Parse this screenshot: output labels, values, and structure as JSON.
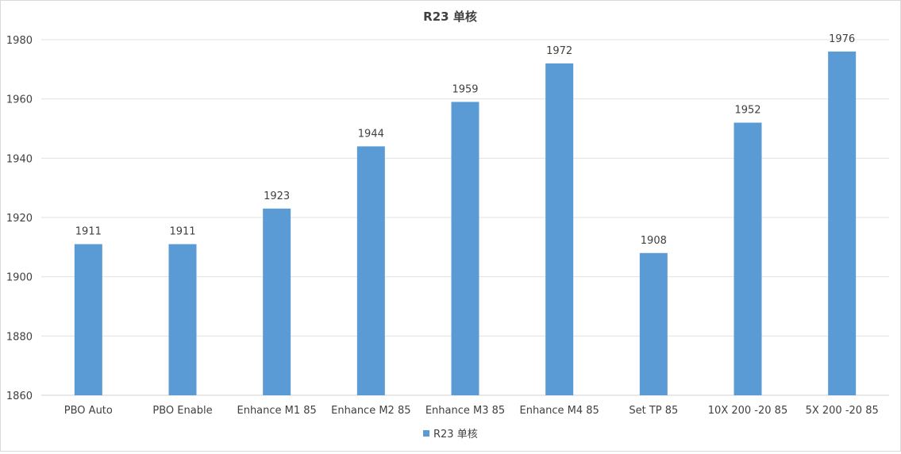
{
  "chart_data": {
    "type": "bar",
    "title": "R23 单核",
    "categories": [
      "PBO Auto",
      "PBO Enable",
      "Enhance M1 85",
      "Enhance M2 85",
      "Enhance M3 85",
      "Enhance M4 85",
      "Set TP 85",
      "10X 200 -20 85",
      "5X 200 -20 85"
    ],
    "series": [
      {
        "name": "R23 单核",
        "values": [
          1911,
          1911,
          1923,
          1944,
          1959,
          1972,
          1908,
          1952,
          1976
        ]
      }
    ],
    "ylim": [
      1860,
      1980
    ],
    "yticks": [
      1860,
      1880,
      1900,
      1920,
      1940,
      1960,
      1980
    ],
    "xlabel": "",
    "ylabel": "",
    "grid": true,
    "legend_position": "bottom",
    "data_labels": true,
    "colors": {
      "bar": "#5b9bd5",
      "grid": "#e3e3e3",
      "axis": "#d0d0d0",
      "text": "#404040",
      "title": "#404040"
    }
  }
}
